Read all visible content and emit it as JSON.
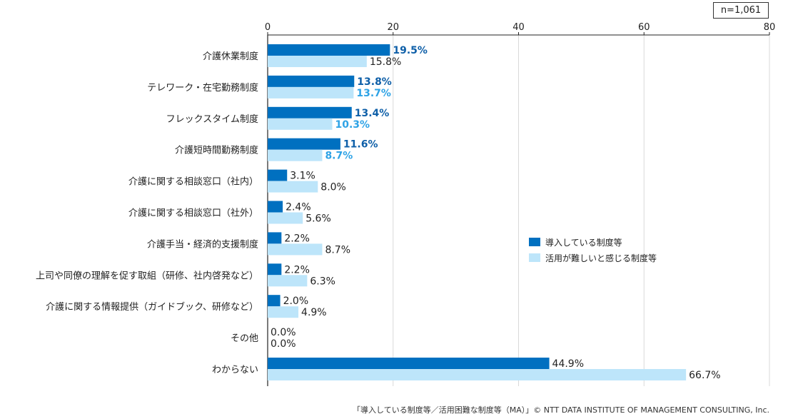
{
  "sample_note": "n=1,061",
  "source_note": "「導入している制度等／活用困難な制度等（MA）」© NTT DATA INSTITUTE OF MANAGEMENT CONSULTING, Inc.",
  "chart_data": {
    "type": "bar",
    "orientation": "horizontal",
    "xlim": [
      0,
      80
    ],
    "xticks": [
      0,
      20,
      40,
      60,
      80
    ],
    "grid": true,
    "legend_position": "center-right",
    "categories": [
      "介護休業制度",
      "テレワーク・在宅勤務制度",
      "フレックスタイム制度",
      "介護短時間勤務制度",
      "介護に関する相談窓口（社内）",
      "介護に関する相談窓口（社外）",
      "介護手当・経済的支援制度",
      "上司や同僚の理解を促す取組（研修、社内啓発など）",
      "介護に関する情報提供（ガイドブック、研修など）",
      "その他",
      "わからない"
    ],
    "series": [
      {
        "name": "導入している制度等",
        "color": "#0070C0",
        "values": [
          19.5,
          13.8,
          13.4,
          11.6,
          3.1,
          2.4,
          2.2,
          2.2,
          2.0,
          0.0,
          44.9
        ],
        "labels": [
          "19.5%",
          "13.8%",
          "13.4%",
          "11.6%",
          "3.1%",
          "2.4%",
          "2.2%",
          "2.2%",
          "2.0%",
          "0.0%",
          "44.9%"
        ],
        "highlight_label_color": "#0E5FA8",
        "highlight": [
          true,
          true,
          true,
          true,
          false,
          false,
          false,
          false,
          false,
          false,
          false
        ]
      },
      {
        "name": "活用が難しいと感じる制度等",
        "color": "#BDE5FA",
        "values": [
          15.8,
          13.7,
          10.3,
          8.7,
          8.0,
          5.6,
          8.7,
          6.3,
          4.9,
          0.0,
          66.7
        ],
        "labels": [
          "15.8%",
          "13.7%",
          "10.3%",
          "8.7%",
          "8.0%",
          "5.6%",
          "8.7%",
          "6.3%",
          "4.9%",
          "0.0%",
          "66.7%"
        ],
        "highlight_label_color": "#2EA3E6",
        "highlight": [
          false,
          true,
          true,
          true,
          false,
          false,
          false,
          false,
          false,
          false,
          false
        ]
      }
    ]
  }
}
